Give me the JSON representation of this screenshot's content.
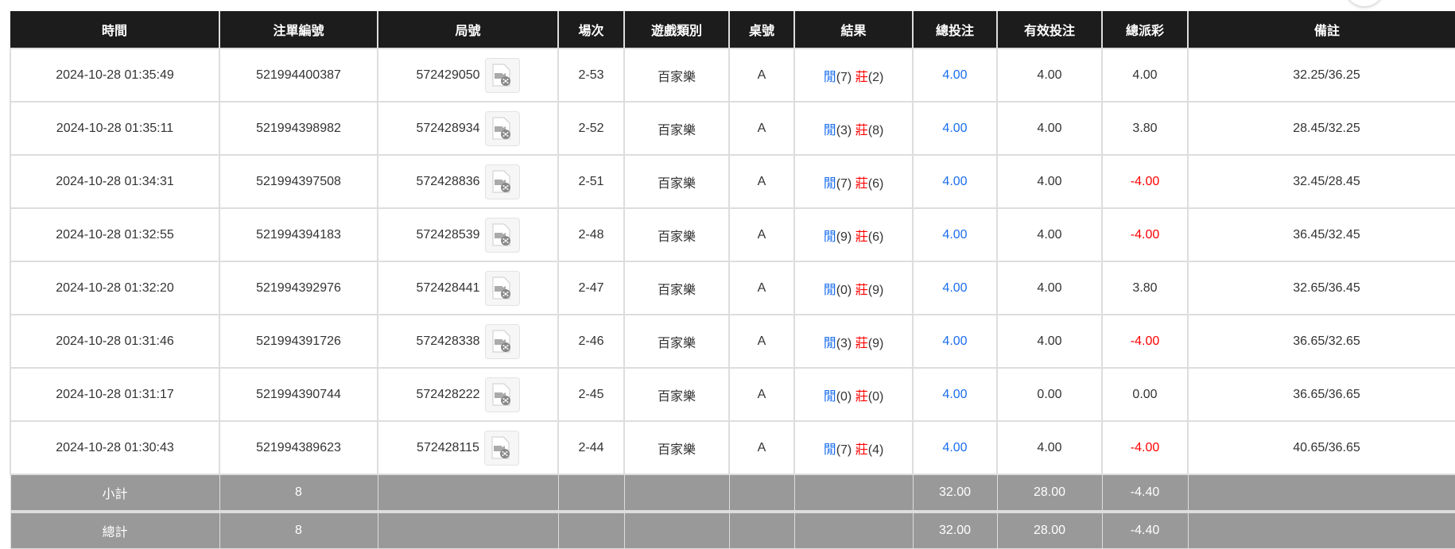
{
  "columns": [
    "時間",
    "注單編號",
    "局號",
    "場次",
    "遊戲類別",
    "桌號",
    "結果",
    "總投注",
    "有效投注",
    "總派彩",
    "備註"
  ],
  "result_labels": {
    "player": "閒",
    "banker": "莊"
  },
  "colors": {
    "header_bg": "#1c1c1c",
    "summary_bg": "#999999",
    "blue": "#1a6ef0",
    "red": "#ff0000"
  },
  "rows": [
    {
      "time": "2024-10-28 01:35:49",
      "bet_id": "521994400387",
      "round": "572429050",
      "shoe": "2-53",
      "game": "百家樂",
      "table": "A",
      "player": "(7)",
      "banker": "(2)",
      "total_bet": "4.00",
      "valid_bet": "4.00",
      "payout": "4.00",
      "payout_negative": false,
      "note": "32.25/36.25"
    },
    {
      "time": "2024-10-28 01:35:11",
      "bet_id": "521994398982",
      "round": "572428934",
      "shoe": "2-52",
      "game": "百家樂",
      "table": "A",
      "player": "(3)",
      "banker": "(8)",
      "total_bet": "4.00",
      "valid_bet": "4.00",
      "payout": "3.80",
      "payout_negative": false,
      "note": "28.45/32.25"
    },
    {
      "time": "2024-10-28 01:34:31",
      "bet_id": "521994397508",
      "round": "572428836",
      "shoe": "2-51",
      "game": "百家樂",
      "table": "A",
      "player": "(7)",
      "banker": "(6)",
      "total_bet": "4.00",
      "valid_bet": "4.00",
      "payout": "-4.00",
      "payout_negative": true,
      "note": "32.45/28.45"
    },
    {
      "time": "2024-10-28 01:32:55",
      "bet_id": "521994394183",
      "round": "572428539",
      "shoe": "2-48",
      "game": "百家樂",
      "table": "A",
      "player": "(9)",
      "banker": "(6)",
      "total_bet": "4.00",
      "valid_bet": "4.00",
      "payout": "-4.00",
      "payout_negative": true,
      "note": "36.45/32.45"
    },
    {
      "time": "2024-10-28 01:32:20",
      "bet_id": "521994392976",
      "round": "572428441",
      "shoe": "2-47",
      "game": "百家樂",
      "table": "A",
      "player": "(0)",
      "banker": "(9)",
      "total_bet": "4.00",
      "valid_bet": "4.00",
      "payout": "3.80",
      "payout_negative": false,
      "note": "32.65/36.45"
    },
    {
      "time": "2024-10-28 01:31:46",
      "bet_id": "521994391726",
      "round": "572428338",
      "shoe": "2-46",
      "game": "百家樂",
      "table": "A",
      "player": "(3)",
      "banker": "(9)",
      "total_bet": "4.00",
      "valid_bet": "4.00",
      "payout": "-4.00",
      "payout_negative": true,
      "note": "36.65/32.65"
    },
    {
      "time": "2024-10-28 01:31:17",
      "bet_id": "521994390744",
      "round": "572428222",
      "shoe": "2-45",
      "game": "百家樂",
      "table": "A",
      "player": "(0)",
      "banker": "(0)",
      "total_bet": "4.00",
      "valid_bet": "0.00",
      "payout": "0.00",
      "payout_negative": false,
      "note": "36.65/36.65"
    },
    {
      "time": "2024-10-28 01:30:43",
      "bet_id": "521994389623",
      "round": "572428115",
      "shoe": "2-44",
      "game": "百家樂",
      "table": "A",
      "player": "(7)",
      "banker": "(4)",
      "total_bet": "4.00",
      "valid_bet": "4.00",
      "payout": "-4.00",
      "payout_negative": true,
      "note": "40.65/36.65"
    }
  ],
  "subtotal": {
    "label": "小計",
    "count": "8",
    "total_bet": "32.00",
    "valid_bet": "28.00",
    "payout": "-4.40"
  },
  "grand_total": {
    "label": "總計",
    "count": "8",
    "total_bet": "32.00",
    "valid_bet": "28.00",
    "payout": "-4.40"
  }
}
